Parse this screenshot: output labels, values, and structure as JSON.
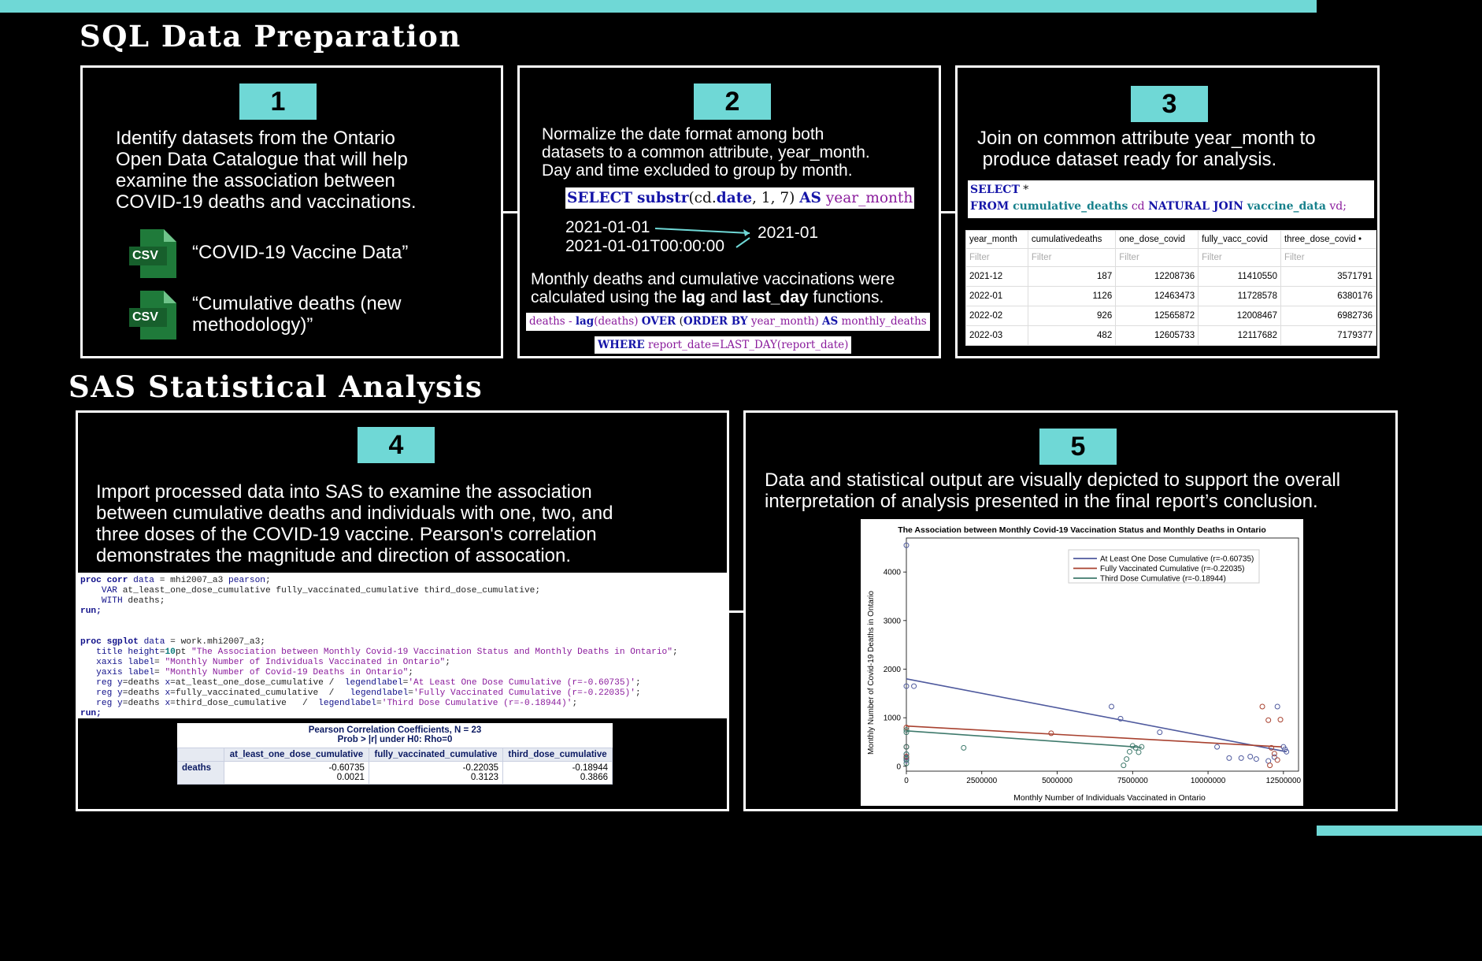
{
  "sections": {
    "sql_title": "SQL Data Preparation",
    "sas_title": "SAS Statistical Analysis"
  },
  "step1": {
    "badge": "1",
    "lines": [
      "Identify datasets from the Ontario",
      "Open Data Catalogue that will help",
      "examine the association between",
      "COVID-19 deaths and vaccinations."
    ],
    "icon_label": "CSV",
    "dataset1": "“COVID-19 Vaccine Data”",
    "dataset2_l1": "“Cumulative deaths (new",
    "dataset2_l2": "methodology)”"
  },
  "step2": {
    "badge": "2",
    "lines": [
      "Normalize the date format among both",
      "datasets to a common attribute, year_month.",
      "Day and time excluded to group by month."
    ],
    "sql_select": "SELECT",
    "sql_substr": "substr",
    "sql_args_open": "(cd.",
    "sql_date": "date",
    "sql_args_close": ", 1, 7)",
    "sql_as": "AS",
    "sql_alias": "year_month",
    "date_in1": "2021-01-01",
    "date_in2": "2021-01-01T00:00:00",
    "date_out": "2021-01",
    "desc_l1": "Monthly deaths and cumulative vaccinations were",
    "desc_l2_a": "calculated using the ",
    "desc_l2_b": "lag",
    "desc_l2_c": " and ",
    "desc_l2_d": "last_day",
    "desc_l2_e": " functions.",
    "lag_a": "deaths - ",
    "lag_b": "lag",
    "lag_c": "(deaths) ",
    "lag_d": "OVER",
    "lag_e": " (",
    "lag_f": "ORDER BY",
    "lag_g": " year_month) ",
    "lag_h": "AS",
    "lag_i": " monthly_deaths",
    "where_a": "WHERE",
    "where_b": " report_date=LAST_DAY(report_date)"
  },
  "step3": {
    "badge": "3",
    "line1": "Join on common attribute year_month to",
    "line2": " produce dataset ready for analysis.",
    "sql_select": "SELECT",
    "sql_star": " *",
    "sql_from": "FROM",
    "sql_t1": " cumulative_deaths",
    "sql_a1": " cd ",
    "sql_nj": "NATURAL JOIN",
    "sql_t2": " vaccine_data",
    "sql_a2": " vd;",
    "table": {
      "headers": [
        "year_month",
        "cumulativedeaths",
        "one_dose_covid",
        "fully_vacc_covid",
        "three_dose_covid •"
      ],
      "filter": "Filter",
      "rows": [
        [
          "2021-12",
          "187",
          "12208736",
          "11410550",
          "3571791"
        ],
        [
          "2022-01",
          "1126",
          "12463473",
          "11728578",
          "6380176"
        ],
        [
          "2022-02",
          "926",
          "12565872",
          "12008467",
          "6982736"
        ],
        [
          "2022-03",
          "482",
          "12605733",
          "12117682",
          "7179377"
        ]
      ]
    }
  },
  "step4": {
    "badge": "4",
    "lines": [
      "Import processed data into SAS to examine the association",
      "between cumulative deaths and individuals with one, two, and",
      "three doses of the COVID-19 vaccine. Pearson's correlation",
      "demonstrates the magnitude and direction of assocation."
    ],
    "code": {
      "l1a": "proc corr",
      "l1b": " data",
      "l1c": " = mhi2007_a3 ",
      "l1d": "pearson",
      "l1e": ";",
      "l2a": "    VAR",
      "l2b": " at_least_one_dose_cumulative fully_vaccinated_cumulative third_dose_cumulative;",
      "l3a": "    WITH",
      "l3b": " deaths;",
      "l4": "run;",
      "l6a": "proc sgplot",
      "l6b": " data",
      "l6c": " = work.mhi2007_a3;",
      "l7a": "   title",
      "l7b": " height",
      "l7c": "=",
      "l7d": "10",
      "l7e": "pt ",
      "l7f": "\"The Association between Monthly Covid-19 Vaccination Status and Monthly Deaths in Ontario\"",
      "l7g": ";",
      "l8a": "   xaxis",
      "l8b": " label",
      "l8c": "= ",
      "l8d": "\"Monthly Number of Individuals Vaccinated in Ontario\"",
      "l8e": ";",
      "l9a": "   yaxis",
      "l9b": " label",
      "l9c": "= ",
      "l9d": "\"Monthly Number of Covid-19 Deaths in Ontario\"",
      "l9e": ";",
      "l10a": "   reg",
      "l10b": " y",
      "l10c": "=deaths ",
      "l10d": "x",
      "l10e": "=at_least_one_dose_cumulative /  ",
      "l10f": "legendlabel",
      "l10g": "=",
      "l10h": "'At Least One Dose Cumulative (r=-0.60735)'",
      "l10i": ";",
      "l11a": "   reg",
      "l11b": " y",
      "l11c": "=deaths ",
      "l11d": "x",
      "l11e": "=fully_vaccinated_cumulative  /   ",
      "l11f": "legendlabel",
      "l11g": "=",
      "l11h": "'Fully Vaccinated Cumulative (r=-0.22035)'",
      "l11i": ";",
      "l12a": "   reg",
      "l12b": " y",
      "l12c": "=deaths ",
      "l12d": "x",
      "l12e": "=third_dose_cumulative   /  ",
      "l12f": "legendlabel",
      "l12g": "=",
      "l12h": "'Third Dose Cumulative (r=-0.18944)'",
      "l12i": ";",
      "l13": "run;"
    },
    "pearson": {
      "title1": "Pearson Correlation Coefficients, N = 23",
      "title2": "Prob > |r| under H0: Rho=0",
      "cols": [
        "at_least_one_dose_cumulative",
        "fully_vaccinated_cumulative",
        "third_dose_cumulative"
      ],
      "row_label": "deaths",
      "r": [
        "-0.60735",
        "-0.22035",
        "-0.18944"
      ],
      "p": [
        "0.0021",
        "0.3123",
        "0.3866"
      ]
    }
  },
  "step5": {
    "badge": "5",
    "line1": "Data and statistical output are visually depicted to support the overall",
    "line2": "interpretation of analysis presented in the final report’s conclusion."
  },
  "chart_data": {
    "type": "scatter",
    "title": "The Association between Monthly Covid-19 Vaccination Status and Monthly Deaths in Ontario",
    "xlabel": "Monthly Number of Individuals Vaccinated in Ontario",
    "ylabel": "Monthly Number of Covid-19 Deaths in Ontario",
    "xlim": [
      0,
      13000000
    ],
    "ylim": [
      -100,
      4700
    ],
    "x_ticks": [
      "0",
      "2500000",
      "5000000",
      "7500000",
      "10000000",
      "12500000"
    ],
    "x_tick_values": [
      0,
      2500000,
      5000000,
      7500000,
      10000000,
      12500000
    ],
    "y_ticks": [
      "0",
      "1000",
      "2000",
      "3000",
      "4000"
    ],
    "y_tick_values": [
      0,
      1000,
      2000,
      3000,
      4000
    ],
    "legend_position": "top-right",
    "series": [
      {
        "name": "At Least One Dose Cumulative (r=-0.60735)",
        "color": "#4f5a9e",
        "x": [
          0,
          0,
          0,
          0,
          0,
          0,
          250000,
          6800000,
          7100000,
          8400000,
          10300000,
          10700000,
          11100000,
          11400000,
          11600000,
          12000000,
          12200000,
          12300000,
          12500000,
          12550000,
          12600000
        ],
        "y": [
          4550,
          1650,
          400,
          250,
          180,
          120,
          1650,
          1230,
          980,
          700,
          400,
          170,
          170,
          200,
          150,
          110,
          190,
          1230,
          400,
          350,
          300
        ],
        "fit": [
          [
            0,
            1800
          ],
          [
            12600000,
            300
          ]
        ]
      },
      {
        "name": "Fully Vaccinated Cumulative (r=-0.22035)",
        "color": "#a8412f",
        "x": [
          0,
          0,
          0,
          4800000,
          11800000,
          12000000,
          12050000,
          12100000,
          12200000,
          12300000,
          12400000
        ],
        "y": [
          800,
          400,
          200,
          680,
          1230,
          950,
          20,
          380,
          260,
          130,
          960
        ],
        "fit": [
          [
            0,
            830
          ],
          [
            12450000,
            400
          ]
        ]
      },
      {
        "name": "Third Dose Cumulative (r=-0.18944)",
        "color": "#3f7a6c",
        "x": [
          0,
          0,
          0,
          0,
          0,
          0,
          1900000,
          7200000,
          7300000,
          7400000,
          7500000,
          7600000,
          7700000,
          7800000
        ],
        "y": [
          750,
          700,
          400,
          250,
          150,
          60,
          380,
          20,
          150,
          300,
          420,
          380,
          290,
          400
        ],
        "fit": [
          [
            0,
            730
          ],
          [
            7800000,
            390
          ]
        ]
      }
    ]
  }
}
